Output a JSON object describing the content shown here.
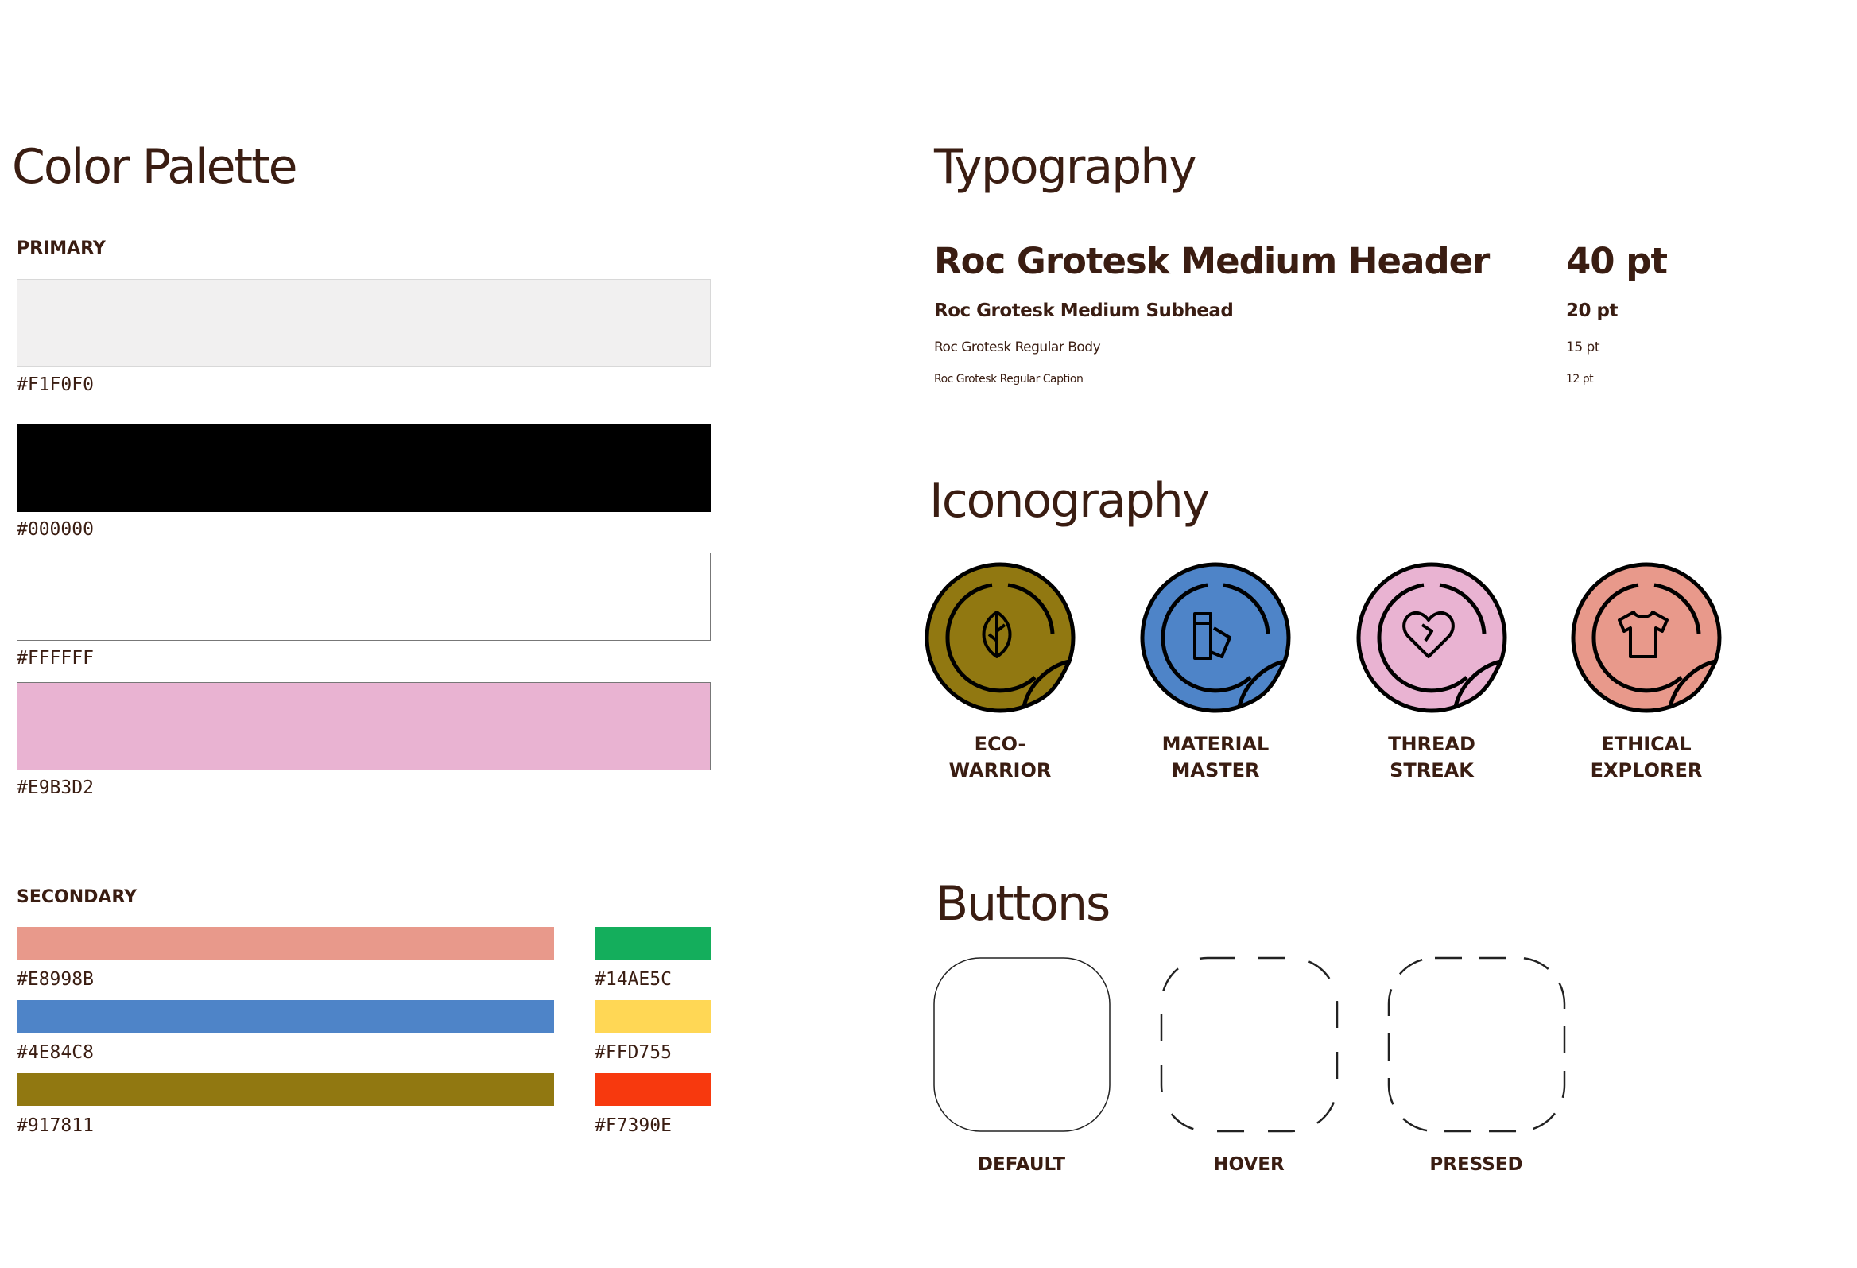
{
  "color_palette": {
    "title": "Color Palette",
    "primary": {
      "label": "PRIMARY",
      "swatches": [
        "#F1F0F0",
        "#000000",
        "#FFFFFF",
        "#E9B3D2"
      ]
    },
    "secondary": {
      "label": "SECONDARY",
      "columns": [
        [
          "#E8998B",
          "#4E84C8",
          "#917811"
        ],
        [
          "#14AE5C",
          "#FFD755",
          "#F7390E"
        ]
      ]
    }
  },
  "typography": {
    "title": "Typography",
    "styles": [
      {
        "name": "Roc Grotesk Medium Header",
        "size": "40 pt"
      },
      {
        "name": "Roc Grotesk Medium Subhead",
        "size": "20 pt"
      },
      {
        "name": "Roc Grotesk Regular Body",
        "size": "15 pt"
      },
      {
        "name": "Roc Grotesk Regular Caption",
        "size": "12 pt"
      }
    ]
  },
  "iconography": {
    "title": "Iconography",
    "icons": [
      {
        "lines": [
          "ECO-",
          "WARRIOR"
        ],
        "color": "#917811"
      },
      {
        "lines": [
          "MATERIAL",
          "MASTER"
        ],
        "color": "#4E84C8"
      },
      {
        "lines": [
          "THREAD",
          "STREAK"
        ],
        "color": "#E9B3D2"
      },
      {
        "lines": [
          "ETHICAL",
          "EXPLORER"
        ],
        "color": "#E8998B"
      }
    ]
  },
  "buttons": {
    "title": "Buttons",
    "states": [
      "DEFAULT",
      "HOVER",
      "PRESSED"
    ]
  }
}
